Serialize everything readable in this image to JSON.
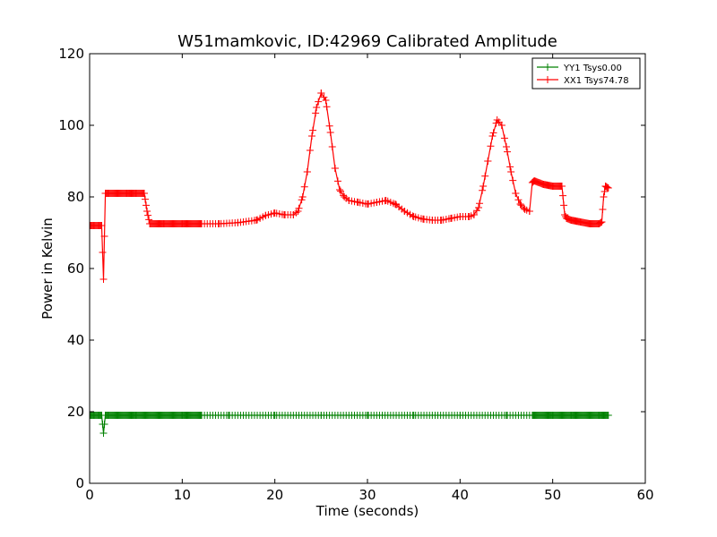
{
  "chart_data": {
    "type": "line",
    "title": "W51mamkovic, ID:42969 Calibrated Amplitude",
    "xlabel": "Time (seconds)",
    "ylabel": "Power in Kelvin",
    "xlim": [
      0,
      60
    ],
    "ylim": [
      0,
      120
    ],
    "xticks": [
      0,
      10,
      20,
      30,
      40,
      50,
      60
    ],
    "yticks": [
      0,
      20,
      40,
      60,
      80,
      100,
      120
    ],
    "grid": false,
    "legend_position": "top-right",
    "series": [
      {
        "name": "YY1 Tsys0.00",
        "color": "#008000",
        "marker": "+",
        "points": [
          [
            0,
            19
          ],
          [
            0.5,
            19
          ],
          [
            1,
            19
          ],
          [
            1.3,
            19
          ],
          [
            1.5,
            14
          ],
          [
            1.7,
            19
          ],
          [
            2,
            19
          ],
          [
            5,
            19
          ],
          [
            10,
            19
          ],
          [
            15,
            19
          ],
          [
            20,
            19
          ],
          [
            25,
            19
          ],
          [
            30,
            19
          ],
          [
            35,
            19
          ],
          [
            40,
            19
          ],
          [
            45,
            19
          ],
          [
            48,
            19
          ],
          [
            50,
            19
          ],
          [
            52,
            19
          ],
          [
            55,
            19
          ],
          [
            56,
            19
          ]
        ],
        "dense_ranges": [
          [
            0,
            12
          ],
          [
            47.5,
            56
          ]
        ],
        "sparse_range": [
          12,
          47.5
        ]
      },
      {
        "name": "XX1 Tsys74.78",
        "color": "#ff0000",
        "marker": "+",
        "points": [
          [
            0,
            72
          ],
          [
            0.5,
            72
          ],
          [
            1,
            72
          ],
          [
            1.3,
            72
          ],
          [
            1.5,
            57
          ],
          [
            1.7,
            81
          ],
          [
            2,
            81
          ],
          [
            3,
            81
          ],
          [
            4,
            81
          ],
          [
            5,
            81
          ],
          [
            5.9,
            81
          ],
          [
            6.2,
            76
          ],
          [
            6.5,
            72.5
          ],
          [
            8,
            72.5
          ],
          [
            10,
            72.5
          ],
          [
            12,
            72.5
          ],
          [
            14,
            72.5
          ],
          [
            16,
            72.8
          ],
          [
            18,
            73.5
          ],
          [
            19,
            74.8
          ],
          [
            20,
            75.5
          ],
          [
            21,
            75
          ],
          [
            22,
            75
          ],
          [
            22.5,
            76
          ],
          [
            23,
            80
          ],
          [
            23.5,
            87
          ],
          [
            24,
            97
          ],
          [
            24.5,
            105
          ],
          [
            25,
            109
          ],
          [
            25.5,
            107
          ],
          [
            26,
            98
          ],
          [
            26.5,
            88
          ],
          [
            27,
            82
          ],
          [
            27.5,
            80
          ],
          [
            28,
            79
          ],
          [
            29,
            78.5
          ],
          [
            30,
            78
          ],
          [
            31,
            78.5
          ],
          [
            32,
            79
          ],
          [
            33,
            78
          ],
          [
            34,
            76
          ],
          [
            35,
            74.5
          ],
          [
            36,
            73.8
          ],
          [
            37,
            73.5
          ],
          [
            38,
            73.5
          ],
          [
            39,
            74
          ],
          [
            40,
            74.5
          ],
          [
            41,
            74.5
          ],
          [
            41.5,
            75
          ],
          [
            42,
            77
          ],
          [
            42.5,
            83
          ],
          [
            43,
            90
          ],
          [
            43.5,
            97
          ],
          [
            44,
            101.5
          ],
          [
            44.5,
            100
          ],
          [
            45,
            94
          ],
          [
            45.5,
            87
          ],
          [
            46,
            81
          ],
          [
            46.5,
            78
          ],
          [
            47,
            76.5
          ],
          [
            47.5,
            76
          ],
          [
            47.8,
            84
          ],
          [
            48,
            84.5
          ],
          [
            49,
            83.5
          ],
          [
            50,
            83
          ],
          [
            51,
            83
          ],
          [
            51.3,
            75
          ],
          [
            51.5,
            74
          ],
          [
            52,
            73.5
          ],
          [
            53,
            73
          ],
          [
            54,
            72.5
          ],
          [
            55,
            72.5
          ],
          [
            55.3,
            73
          ],
          [
            55.5,
            80
          ],
          [
            55.7,
            83
          ],
          [
            56,
            82.5
          ]
        ],
        "dense_ranges": [
          [
            0,
            12
          ],
          [
            47.5,
            56
          ]
        ],
        "sparse_range": [
          12,
          47.5
        ]
      }
    ]
  }
}
